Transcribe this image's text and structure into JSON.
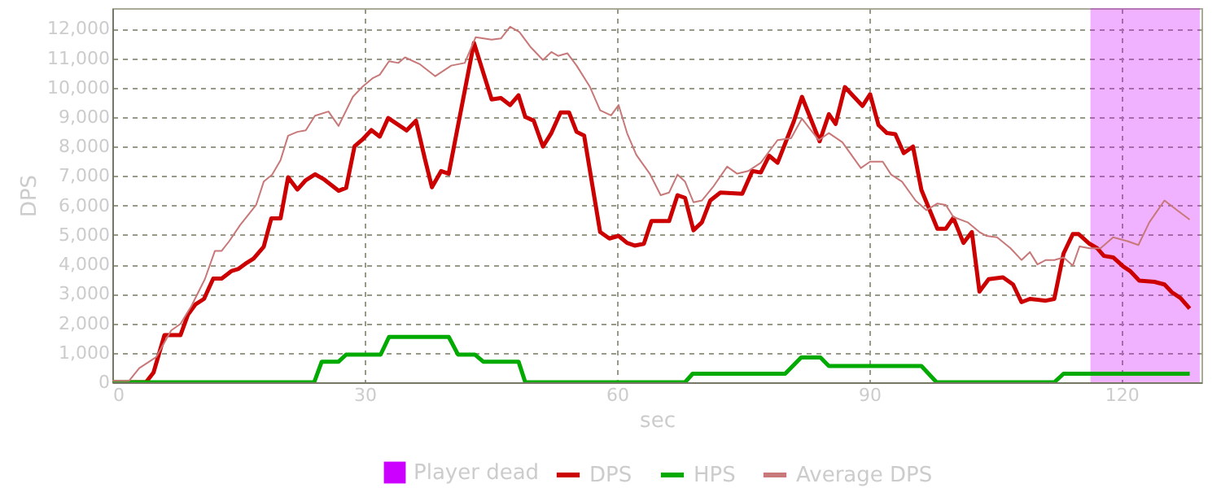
{
  "chart_data": {
    "type": "line",
    "xlabel": "sec",
    "ylabel": "DPS",
    "xlim": [
      0,
      129.5
    ],
    "ylim": [
      0,
      12700
    ],
    "xticks": [
      0,
      30,
      60,
      90,
      120
    ],
    "yticks": [
      0,
      {
        "value": 1000,
        "label": "1,000"
      },
      {
        "value": 2000,
        "label": "2,000"
      },
      {
        "value": 3000,
        "label": "3,000"
      },
      {
        "value": 4000,
        "label": "4,000"
      },
      {
        "value": 5000,
        "label": "5,000"
      },
      {
        "value": 6000,
        "label": "6,000"
      },
      {
        "value": 7000,
        "label": "7,000"
      },
      {
        "value": 8000,
        "label": "8,000"
      },
      {
        "value": 9000,
        "label": "9,000"
      },
      {
        "value": 10000,
        "label": "10,000"
      },
      {
        "value": 11000,
        "label": "11,000"
      },
      {
        "value": 12000,
        "label": "12,000"
      }
    ],
    "grid": true,
    "legend": "bottom",
    "series": [
      {
        "name": "DPS",
        "color": "#cc0000",
        "x": [
          0,
          4,
          4.9,
          6.2,
          8.1,
          9,
          9.9,
          10.9,
          12,
          13,
          14.2,
          15,
          15.8,
          16.8,
          18,
          18.9,
          20,
          20.9,
          22,
          23,
          24.1,
          25.1,
          26.9,
          27.8,
          28.8,
          29.7,
          30.8,
          31.8,
          32.8,
          35,
          36.1,
          37.2,
          38,
          39.1,
          40,
          43,
          45.1,
          46.2,
          47.3,
          48.3,
          49.1,
          50.1,
          51.2,
          52.2,
          53.3,
          54.3,
          55.2,
          56.1,
          58,
          59.1,
          60.2,
          61.2,
          62.1,
          63.2,
          64.1,
          66.2,
          67.2,
          68.1,
          69.1,
          70.1,
          71.1,
          72.3,
          74.9,
          76.1,
          77.1,
          78.1,
          79.1,
          81,
          82,
          84.1,
          85.2,
          86,
          87.1,
          89.2,
          90.1,
          91.1,
          92.1,
          93.1,
          94.1,
          95.2,
          96.2,
          98.1,
          99.1,
          100,
          101.2,
          102.2,
          103.1,
          104.2,
          105.9,
          107.1,
          108.1,
          109.1,
          111,
          112,
          113.1,
          114.2,
          114.9,
          116.2,
          117.1,
          117.9,
          119,
          120.2,
          121,
          122.1,
          123.9,
          125.1,
          126,
          127,
          128.1
        ],
        "values": [
          0,
          0,
          330,
          1600,
          1600,
          2300,
          2650,
          2830,
          3520,
          3520,
          3780,
          3850,
          4020,
          4200,
          4600,
          5560,
          5560,
          6960,
          6540,
          6860,
          7060,
          6900,
          6500,
          6600,
          8010,
          8230,
          8560,
          8340,
          8970,
          8550,
          8880,
          7540,
          6620,
          7170,
          7080,
          11520,
          9600,
          9650,
          9410,
          9740,
          9010,
          8880,
          8000,
          8460,
          9160,
          9160,
          8500,
          8370,
          5100,
          4880,
          4970,
          4730,
          4640,
          4700,
          5470,
          5470,
          6350,
          6260,
          5160,
          5430,
          6170,
          6440,
          6400,
          7170,
          7120,
          7690,
          7450,
          8830,
          9690,
          8180,
          9100,
          8770,
          10020,
          9380,
          9780,
          8730,
          8460,
          8420,
          7780,
          8000,
          6530,
          5210,
          5210,
          5580,
          4730,
          5100,
          3080,
          3500,
          3560,
          3320,
          2720,
          2830,
          2770,
          2830,
          4370,
          5030,
          5030,
          4700,
          4550,
          4290,
          4240,
          3930,
          3780,
          3450,
          3410,
          3320,
          3050,
          2860,
          2500
        ]
      },
      {
        "name": "HPS",
        "color": "#00aa00",
        "x": [
          0,
          24,
          24.9,
          26.9,
          27.8,
          31.9,
          32.9,
          40,
          41.1,
          43.1,
          44.1,
          48.3,
          49.1,
          68.1,
          69,
          80,
          81.9,
          84.2,
          85.2,
          96.2,
          98,
          112,
          113.1,
          128.1
        ],
        "values": [
          0,
          0,
          700,
          700,
          940,
          940,
          1540,
          1540,
          940,
          940,
          700,
          700,
          0,
          0,
          290,
          290,
          840,
          840,
          550,
          550,
          0,
          0,
          290,
          290
        ]
      },
      {
        "name": "Average DPS",
        "color": "#c87878",
        "x": [
          0,
          2,
          3.2,
          5.2,
          7,
          8.1,
          9.4,
          11,
          12.2,
          13,
          13.9,
          15.2,
          17.1,
          18,
          19,
          20,
          20.9,
          22,
          23,
          24.1,
          25.7,
          26.9,
          28.6,
          29.7,
          31,
          31.8,
          32.9,
          34,
          34.8,
          36.6,
          38.4,
          40.3,
          41.9,
          43.2,
          45.1,
          46.2,
          47.3,
          48.4,
          49.7,
          51.2,
          52.2,
          53,
          54.1,
          55.2,
          56.8,
          58,
          59.3,
          60.2,
          61.2,
          62.3,
          63.9,
          65.2,
          66.2,
          67.2,
          68.1,
          69.1,
          70.1,
          71.4,
          73.1,
          74.3,
          75.6,
          77.1,
          79.1,
          80.7,
          82,
          84,
          85.2,
          86.8,
          89,
          90.1,
          91.6,
          92.6,
          93.9,
          95.5,
          96.8,
          98.1,
          99.1,
          100,
          101.7,
          103.1,
          103.9,
          105.2,
          106.8,
          108.1,
          109.1,
          110,
          111,
          112,
          113.1,
          114.2,
          115,
          116.2,
          117.5,
          119,
          120.7,
          122,
          123.3,
          125.1,
          126.8,
          128.1
        ],
        "values": [
          50,
          50,
          480,
          850,
          1760,
          1980,
          2590,
          3500,
          4460,
          4460,
          4790,
          5340,
          6020,
          6810,
          7050,
          7540,
          8370,
          8500,
          8550,
          9050,
          9190,
          8700,
          9690,
          10020,
          10330,
          10440,
          10900,
          10840,
          11030,
          10790,
          10390,
          10750,
          10840,
          11710,
          11630,
          11670,
          12070,
          11890,
          11390,
          10940,
          11210,
          11080,
          11170,
          10750,
          10020,
          9230,
          9060,
          9410,
          8460,
          7720,
          7080,
          6350,
          6440,
          7050,
          6810,
          6110,
          6170,
          6620,
          7320,
          7080,
          7170,
          7450,
          8220,
          8280,
          8950,
          8220,
          8460,
          8150,
          7270,
          7490,
          7490,
          7050,
          6810,
          6170,
          5840,
          6070,
          6020,
          5610,
          5430,
          5100,
          4970,
          4920,
          4550,
          4150,
          4420,
          4000,
          4150,
          4150,
          4240,
          3960,
          4610,
          4550,
          4550,
          4920,
          4790,
          4660,
          5430,
          6170,
          5800,
          5520
        ]
      }
    ],
    "bands": [
      {
        "axis": "x",
        "from": 116.3,
        "to": 129.3,
        "label": "Player dead",
        "color": "#cc00ff"
      }
    ]
  }
}
